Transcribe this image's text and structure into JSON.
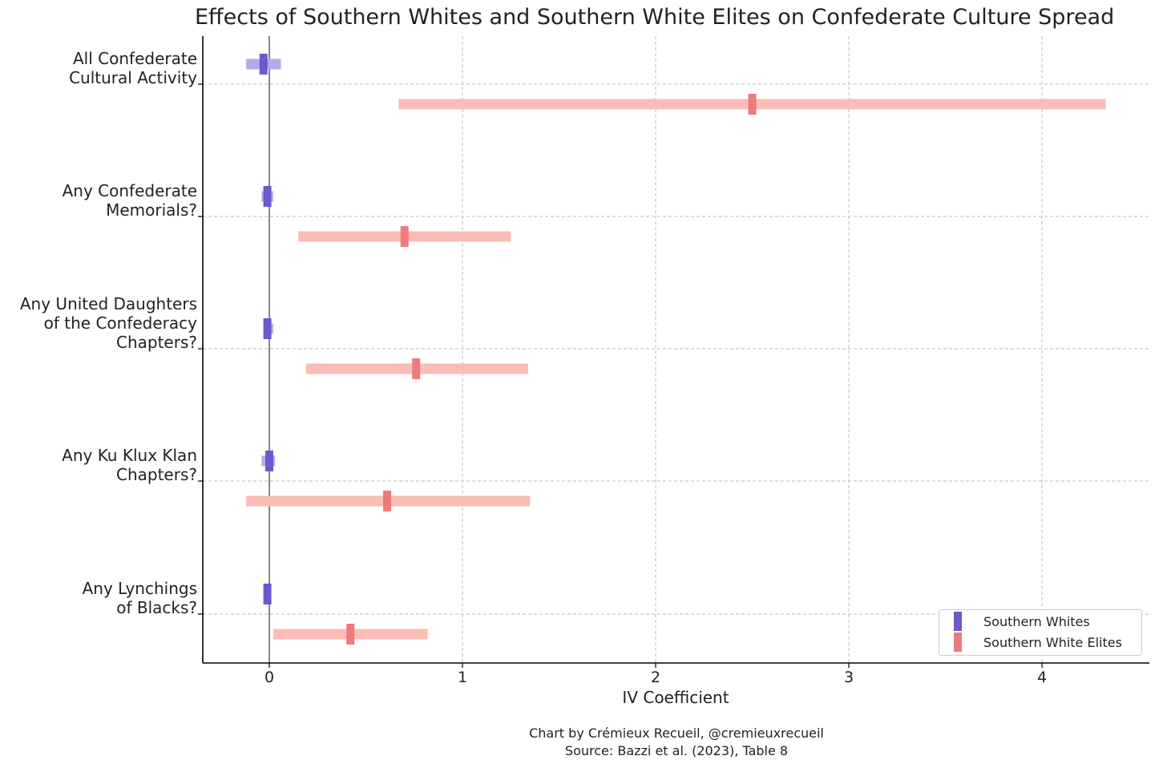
{
  "title": "Effects of Southern Whites and Southern White Elites on Confederate Culture Spread",
  "credit": {
    "line1": "Chart by Crémieux Recueil, @cremieuxrecueil",
    "line2": "Source: Bazzi et al. (2023), Table 8"
  },
  "legend": [
    {
      "label": "Southern Whites",
      "color": "#6a5acd"
    },
    {
      "label": "Southern White Elites",
      "color": "#f08080"
    }
  ],
  "chart_data": {
    "type": "forest",
    "title": "Effects of Southern Whites and Southern White Elites on Confederate Culture Spread",
    "xlabel": "IV Coefficient",
    "ylabel": "",
    "xlim": [
      -0.34,
      4.55
    ],
    "xticks": [
      0,
      1,
      2,
      3,
      4
    ],
    "grid": true,
    "legend_position": "bottom-right",
    "categories": [
      [
        "All Confederate",
        "Cultural Activity"
      ],
      [
        "Any Confederate",
        "Memorials?"
      ],
      [
        "Any United Daughters",
        "of the Confederacy",
        "Chapters?"
      ],
      [
        "Any Ku Klux Klan",
        "Chapters?"
      ],
      [
        "Any Lynchings",
        "of Blacks?"
      ]
    ],
    "series": [
      {
        "name": "Southern Whites",
        "color": "#6a5acd",
        "ci_color": "#b3aaea",
        "estimates": [
          -0.03,
          -0.01,
          -0.01,
          0.0,
          -0.01
        ],
        "ci_low": [
          -0.12,
          -0.04,
          -0.03,
          -0.04,
          -0.03
        ],
        "ci_high": [
          0.06,
          0.02,
          0.02,
          0.03,
          0.01
        ]
      },
      {
        "name": "Southern White Elites",
        "color": "#ee7b7b",
        "ci_color": "#fbbcb5",
        "estimates": [
          2.5,
          0.7,
          0.76,
          0.61,
          0.42
        ],
        "ci_low": [
          0.67,
          0.15,
          0.19,
          -0.12,
          0.02
        ],
        "ci_high": [
          4.33,
          1.25,
          1.34,
          1.35,
          0.82
        ]
      }
    ]
  }
}
